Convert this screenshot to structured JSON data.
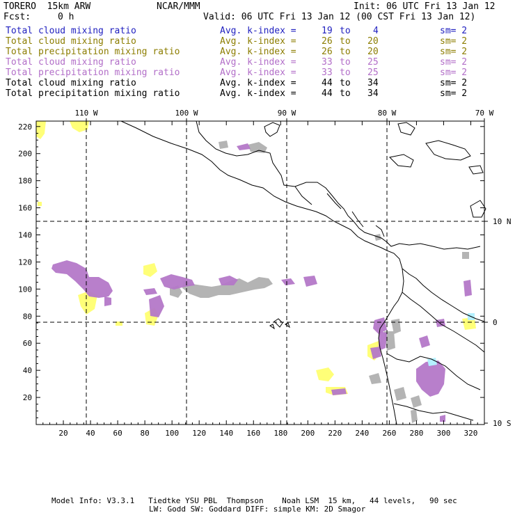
{
  "header": {
    "model": "TORERO  15km ARW",
    "org": "NCAR/MMM",
    "init": "Init: 06 UTC Fri 13 Jan 12",
    "fcst_label": "Fcst:",
    "fcst_value": "0 h",
    "valid": "Valid: 06 UTC Fri 13 Jan 12 (00 CST Fri 13 Jan 12)"
  },
  "legend": [
    {
      "name": "Total cloud mixing ratio",
      "kindex": "Avg. k-index =",
      "from": "19",
      "to_word": "to",
      "to": "4",
      "sm": "sm= 2",
      "color": "#1f1fbf"
    },
    {
      "name": "Total cloud mixing ratio",
      "kindex": "Avg. k-index =",
      "from": "26",
      "to_word": "to",
      "to": "20",
      "sm": "sm= 2",
      "color": "#8c7d00"
    },
    {
      "name": "Total precipitation mixing ratio",
      "kindex": "Avg. k-index =",
      "from": "26",
      "to_word": "to",
      "to": "20",
      "sm": "sm= 2",
      "color": "#8c7d00"
    },
    {
      "name": "Total cloud mixing ratio",
      "kindex": "Avg. k-index =",
      "from": "33",
      "to_word": "to",
      "to": "25",
      "sm": "sm= 2",
      "color": "#b26ec8"
    },
    {
      "name": "Total precipitation mixing ratio",
      "kindex": "Avg. k-index =",
      "from": "33",
      "to_word": "to",
      "to": "25",
      "sm": "sm= 2",
      "color": "#b26ec8"
    },
    {
      "name": "Total cloud mixing ratio",
      "kindex": "Avg. k-index =",
      "from": "44",
      "to_word": "to",
      "to": "34",
      "sm": "sm= 2",
      "color": "#000000"
    },
    {
      "name": "Total precipitation mixing ratio",
      "kindex": "Avg. k-index =",
      "from": "44",
      "to_word": "to",
      "to": "34",
      "sm": "sm= 2",
      "color": "#000000"
    }
  ],
  "map": {
    "x_grid_ticks": [
      "20",
      "40",
      "60",
      "80",
      "100",
      "120",
      "140",
      "160",
      "180",
      "200",
      "220",
      "240",
      "260",
      "280",
      "300",
      "320"
    ],
    "y_grid_ticks": [
      "20",
      "40",
      "60",
      "80",
      "100",
      "120",
      "140",
      "160",
      "180",
      "200",
      "220"
    ],
    "lon_labels": [
      "110 W",
      "100 W",
      "90 W",
      "80 W",
      "70 W"
    ],
    "lat_labels": [
      "10 N",
      "0",
      "10 S"
    ],
    "colors": {
      "grey": "#b4b4b4",
      "yellow": "#ffff78",
      "purple": "#b478c8",
      "cyan": "#b4f0ff",
      "coast": "#000000"
    }
  },
  "footer": {
    "line1": "Model Info: V3.3.1   Tiedtke YSU PBL  Thompson    Noah LSM  15 km,   44 levels,   90 sec",
    "line2": "LW: Godd SW: Goddard DIFF: simple KM: 2D Smagor"
  }
}
